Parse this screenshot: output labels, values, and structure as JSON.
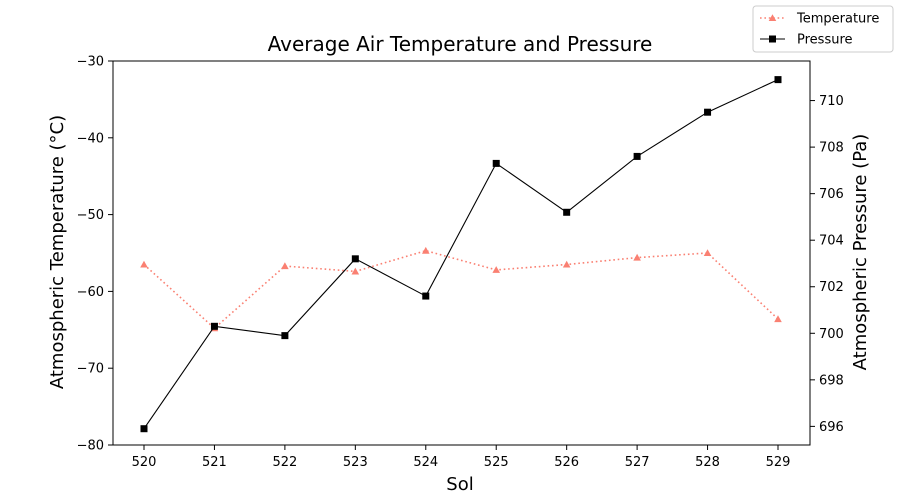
{
  "chart_data": {
    "type": "line",
    "title": "Average Air Temperature and Pressure",
    "xlabel": "Sol",
    "ylabel_left": "Atmospheric Temperature (°C)",
    "ylabel_right": "Atmospheric Pressure (Pa)",
    "x": [
      520,
      521,
      522,
      523,
      524,
      525,
      526,
      527,
      528,
      529
    ],
    "x_tick_labels": [
      "520",
      "521",
      "522",
      "523",
      "524",
      "525",
      "526",
      "527",
      "528",
      "529"
    ],
    "ylim_left": [
      -80,
      -30
    ],
    "y_ticks_left": [
      -80,
      -70,
      -60,
      -50,
      -40,
      -30
    ],
    "y_tick_labels_left": [
      "−80",
      "−70",
      "−60",
      "−50",
      "−40",
      "−30"
    ],
    "ylim_right": [
      695.2,
      711.7
    ],
    "y_ticks_right": [
      696,
      698,
      700,
      702,
      704,
      706,
      708,
      710
    ],
    "y_tick_labels_right": [
      "696",
      "698",
      "700",
      "702",
      "704",
      "706",
      "708",
      "710"
    ],
    "grid": false,
    "legend_position": "top-right",
    "series": [
      {
        "name": "Temperature",
        "axis": "left",
        "color": "#fa8072",
        "marker": "triangle",
        "line_style": "dotted",
        "values": [
          -56.5,
          -64.8,
          -56.7,
          -57.4,
          -54.7,
          -57.2,
          -56.5,
          -55.6,
          -55.0,
          -63.6
        ]
      },
      {
        "name": "Pressure",
        "axis": "right",
        "color": "#000000",
        "marker": "square",
        "line_style": "solid",
        "values": [
          695.9,
          700.3,
          699.9,
          703.2,
          701.6,
          707.3,
          705.2,
          707.6,
          709.5,
          710.9
        ]
      }
    ]
  }
}
